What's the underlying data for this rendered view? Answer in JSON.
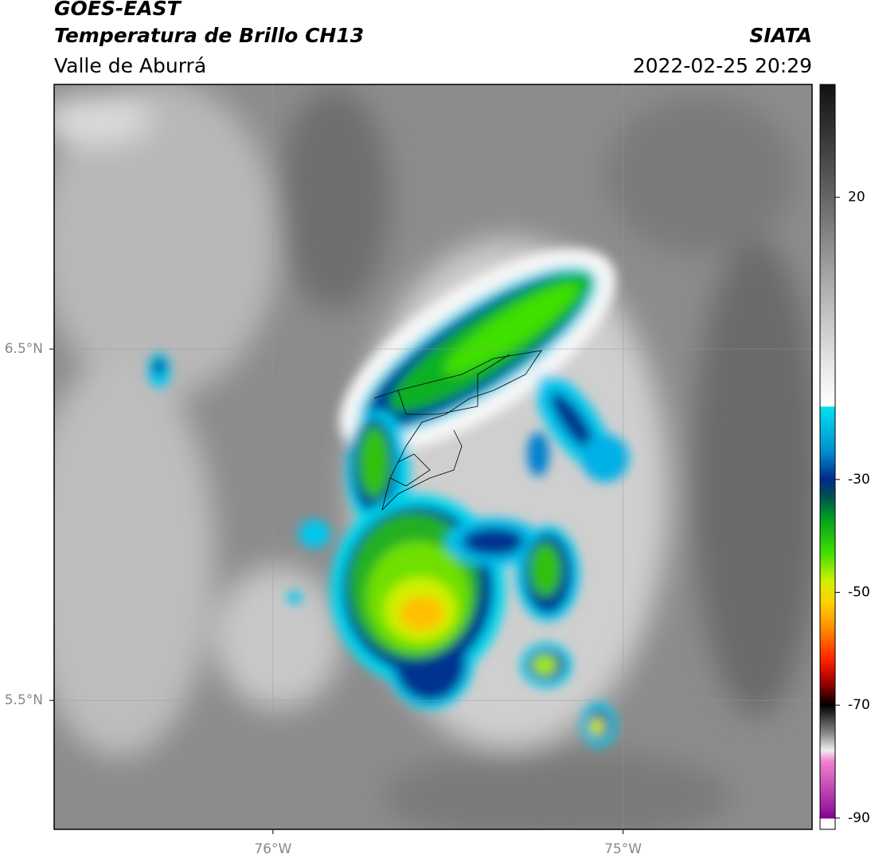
{
  "header": {
    "title": "GOES-EAST",
    "subtitle": "Temperatura de Brillo CH13",
    "region": "Valle de Aburrá",
    "source": "SIATA",
    "datetime": "2022-02-25 20:29"
  },
  "map": {
    "xlim": [
      -76.625,
      -74.46
    ],
    "ylim": [
      5.133,
      7.253
    ],
    "xticks": [
      {
        "value": -76,
        "label": "76°W"
      },
      {
        "value": -75,
        "label": "75°W"
      }
    ],
    "yticks": [
      {
        "value": 5.5,
        "label": "5.5°N"
      },
      {
        "value": 6.5,
        "label": "6.5°N"
      }
    ],
    "grid": true
  },
  "colorbar": {
    "lim": [
      -92,
      40
    ],
    "ticks": [
      20,
      -30,
      -50,
      -70,
      -90
    ]
  }
}
